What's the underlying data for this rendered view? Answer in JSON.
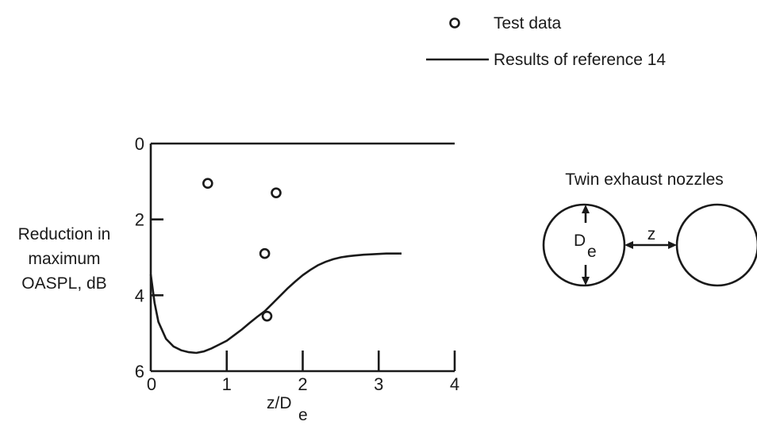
{
  "chart_data": {
    "type": "line",
    "xlabel": "z/D",
    "xlabel_sub": "e",
    "ylabel_lines": [
      "Reduction in",
      "maximum",
      "OASPL, dB"
    ],
    "xlim": [
      0,
      4
    ],
    "ylim": [
      0,
      6
    ],
    "y_inverted": true,
    "x_ticks": [
      0,
      1,
      2,
      3,
      4
    ],
    "y_ticks": [
      0,
      2,
      4,
      6
    ],
    "grid": false,
    "legend_position": "top-right",
    "series": [
      {
        "name": "Test data",
        "kind": "scatter",
        "marker": "open-circle",
        "x": [
          0.75,
          1.65,
          1.5,
          1.53
        ],
        "y": [
          1.05,
          1.3,
          2.9,
          4.55
        ]
      },
      {
        "name": "Results of reference 14",
        "kind": "line",
        "x": [
          0.0,
          0.05,
          0.1,
          0.2,
          0.3,
          0.4,
          0.5,
          0.6,
          0.7,
          0.8,
          0.9,
          1.0,
          1.1,
          1.2,
          1.3,
          1.4,
          1.5,
          1.6,
          1.7,
          1.8,
          1.9,
          2.0,
          2.1,
          2.2,
          2.3,
          2.4,
          2.5,
          2.6,
          2.7,
          2.8,
          2.9,
          3.0,
          3.1,
          3.2,
          3.3
        ],
        "y": [
          3.45,
          4.2,
          4.7,
          5.15,
          5.35,
          5.45,
          5.5,
          5.52,
          5.48,
          5.4,
          5.3,
          5.2,
          5.05,
          4.9,
          4.73,
          4.57,
          4.42,
          4.22,
          4.02,
          3.82,
          3.64,
          3.47,
          3.33,
          3.21,
          3.12,
          3.05,
          3.0,
          2.97,
          2.95,
          2.93,
          2.92,
          2.91,
          2.9,
          2.9,
          2.9
        ]
      }
    ]
  },
  "inset": {
    "title": "Twin exhaust nozzles",
    "diameter_label": "D",
    "diameter_sub": "e",
    "spacing_label": "z"
  }
}
